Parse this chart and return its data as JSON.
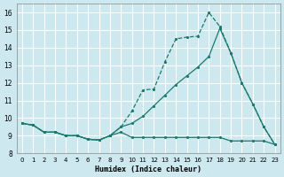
{
  "xlabel": "Humidex (Indice chaleur)",
  "xlim": [
    -0.5,
    23.5
  ],
  "ylim": [
    8,
    16.5
  ],
  "yticks": [
    8,
    9,
    10,
    11,
    12,
    13,
    14,
    15,
    16
  ],
  "xticks": [
    0,
    1,
    2,
    3,
    4,
    5,
    6,
    7,
    8,
    9,
    10,
    11,
    12,
    13,
    14,
    15,
    16,
    17,
    18,
    19,
    20,
    21,
    22,
    23
  ],
  "bg_color": "#cde8ee",
  "grid_color": "#ffffff",
  "line_color": "#1a7a6e",
  "line1_y": [
    9.7,
    9.6,
    9.2,
    9.2,
    9.0,
    9.0,
    8.8,
    8.75,
    9.0,
    9.5,
    10.4,
    11.6,
    11.65,
    13.2,
    14.5,
    14.6,
    14.65,
    16.0,
    15.2,
    13.7,
    12.0,
    10.8,
    9.5,
    8.5
  ],
  "line2_y": [
    9.7,
    9.6,
    9.2,
    9.2,
    9.0,
    9.0,
    8.8,
    8.75,
    9.0,
    9.5,
    9.7,
    10.1,
    10.7,
    11.3,
    11.9,
    12.4,
    12.9,
    13.5,
    15.1,
    13.7,
    12.0,
    10.8,
    9.5,
    8.5
  ],
  "line3_y": [
    9.7,
    9.6,
    9.2,
    9.2,
    9.0,
    9.0,
    8.8,
    8.75,
    9.0,
    9.2,
    8.9,
    8.9,
    8.9,
    8.9,
    8.9,
    8.9,
    8.9,
    8.9,
    8.9,
    8.7,
    8.7,
    8.7,
    8.7,
    8.5
  ]
}
